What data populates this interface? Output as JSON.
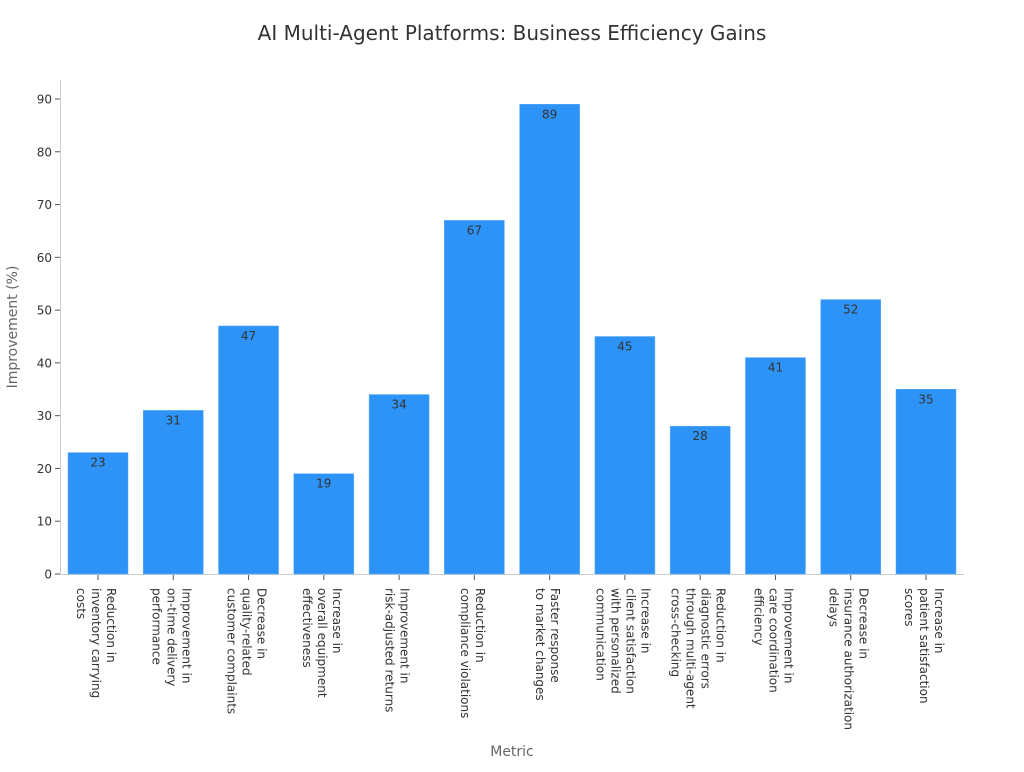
{
  "chart_data": {
    "type": "bar",
    "title": "AI Multi-Agent Platforms: Business Efficiency Gains",
    "xlabel": "Metric",
    "ylabel": "Improvement (%)",
    "ylim": [
      0,
      93
    ],
    "yticks": [
      0,
      10,
      20,
      30,
      40,
      50,
      60,
      70,
      80,
      90
    ],
    "grid": false,
    "bar_color": "#2e93f7",
    "categories": [
      [
        "Reduction in",
        "inventory carrying",
        "costs"
      ],
      [
        "Improvement in",
        "on-time delivery",
        "performance"
      ],
      [
        "Decrease in",
        "quality-related",
        "customer complaints"
      ],
      [
        "Increase in",
        "overall equipment",
        "effectiveness"
      ],
      [
        "Improvement in",
        "risk-adjusted returns"
      ],
      [
        "Reduction in",
        "compliance violations"
      ],
      [
        "Faster response",
        "to market changes"
      ],
      [
        "Increase in",
        "client satisfaction",
        "with personalized",
        "communication"
      ],
      [
        "Reduction in",
        "diagnostic errors",
        "through multi-agent",
        "cross-checking"
      ],
      [
        "Improvement in",
        "care coordination",
        "efficiency"
      ],
      [
        "Decrease in",
        "insurance authorization",
        "delays"
      ],
      [
        "Increase in",
        "patient satisfaction",
        "scores"
      ]
    ],
    "values": [
      23,
      31,
      47,
      19,
      34,
      67,
      89,
      45,
      28,
      41,
      52,
      35
    ]
  }
}
